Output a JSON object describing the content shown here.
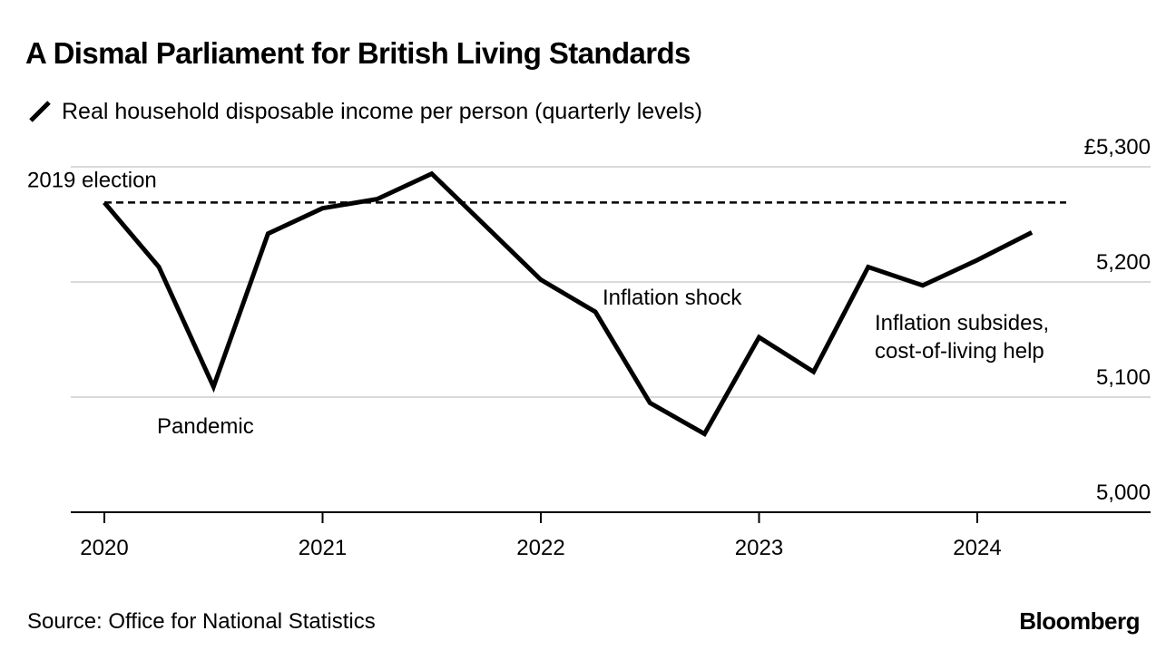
{
  "title": "A Dismal Parliament for British Living Standards",
  "legend": {
    "label": "Real household disposable income per person (quarterly levels)"
  },
  "source": "Source: Office for National Statistics",
  "brand": "Bloomberg",
  "colors": {
    "line": "#000000",
    "grid": "#d9d9d9",
    "axis": "#000000"
  },
  "chart_data": {
    "type": "line",
    "title": "A Dismal Parliament for British Living Standards",
    "ylabel": "Real household disposable income per person (quarterly levels)",
    "xlabel": "",
    "ylim": [
      5000,
      5300
    ],
    "yticks": [
      {
        "value": 5300,
        "label": "£5,300"
      },
      {
        "value": 5200,
        "label": "5,200"
      },
      {
        "value": 5100,
        "label": "5,100"
      },
      {
        "value": 5000,
        "label": "5,000"
      }
    ],
    "xlim": [
      2019.85,
      2024.75
    ],
    "xticks": [
      {
        "value": 2020,
        "label": "2020"
      },
      {
        "value": 2021,
        "label": "2021"
      },
      {
        "value": 2022,
        "label": "2022"
      },
      {
        "value": 2023,
        "label": "2023"
      },
      {
        "value": 2024,
        "label": "2024"
      }
    ],
    "grid": true,
    "series": [
      {
        "name": "Real household disposable income per person",
        "x": [
          2020.0,
          2020.25,
          2020.5,
          2020.75,
          2021.0,
          2021.25,
          2021.5,
          2021.75,
          2022.0,
          2022.25,
          2022.5,
          2022.75,
          2023.0,
          2023.25,
          2023.5,
          2023.75,
          2024.0,
          2024.25
        ],
        "values": [
          5269,
          5213,
          5109,
          5242,
          5264,
          5272,
          5294,
          5248,
          5202,
          5174,
          5095,
          5068,
          5152,
          5122,
          5213,
          5197,
          5219,
          5243
        ]
      }
    ],
    "reference_lines": [
      {
        "label": "2019 election",
        "value": 5269,
        "style": "dashed"
      }
    ],
    "annotations": [
      {
        "text": "Pandemic",
        "x": 2020.5,
        "y": 5109
      },
      {
        "text": "Inflation shock",
        "x": 2022.3,
        "y": 5174
      },
      {
        "text": "Inflation subsides, cost-of-living help",
        "x": 2023.55,
        "y": 5213
      }
    ]
  }
}
